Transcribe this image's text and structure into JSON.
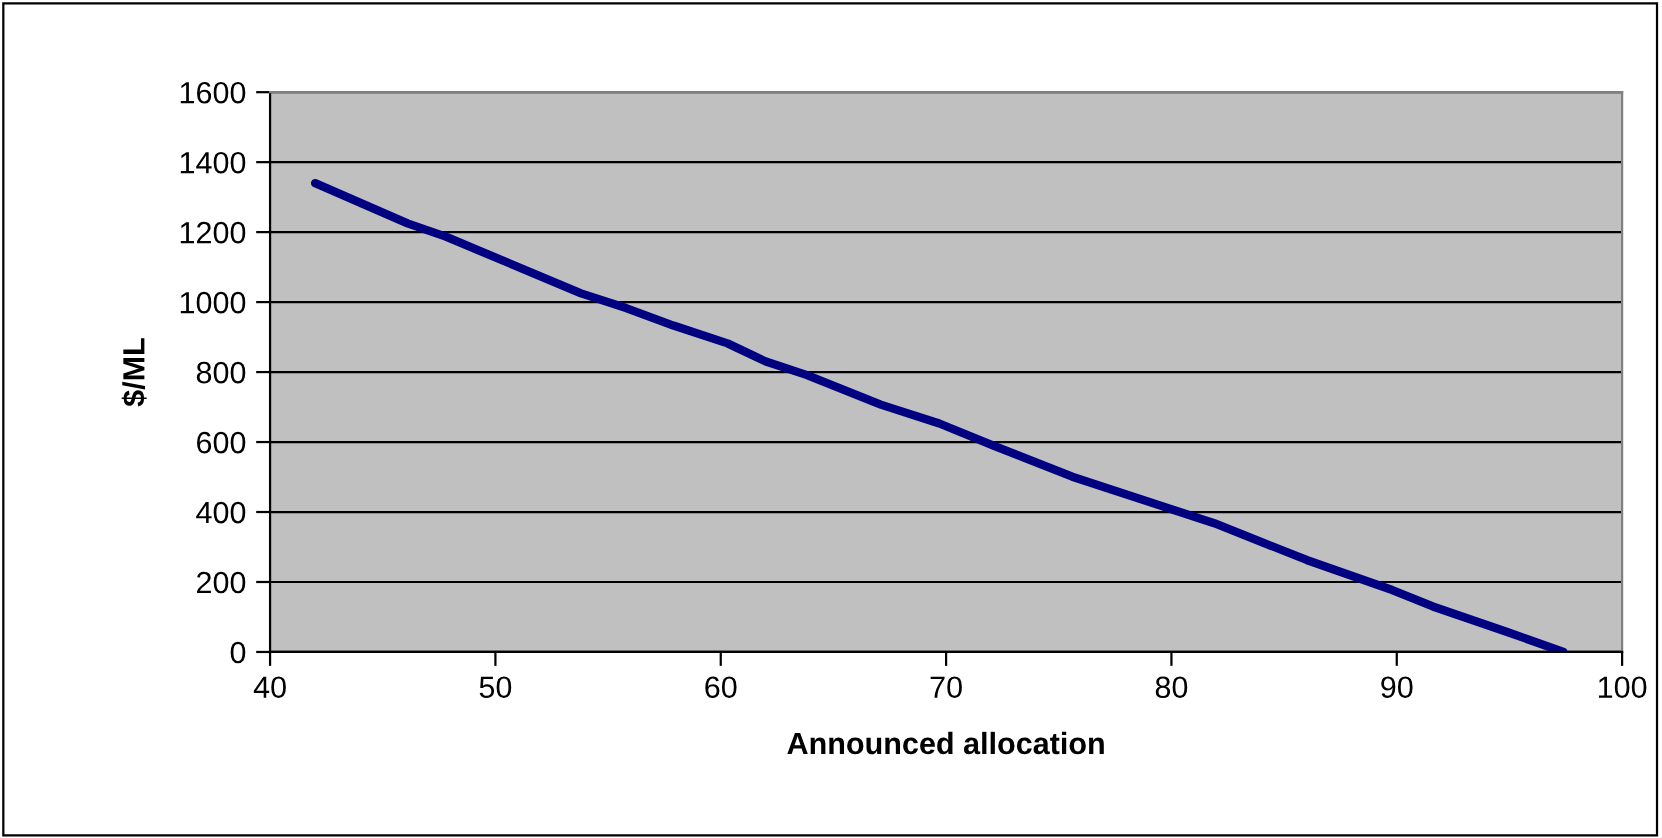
{
  "chart_data": {
    "type": "line",
    "xlabel": "Announced allocation",
    "ylabel": "$/ML",
    "xlim": [
      40,
      100
    ],
    "xticks": [
      40,
      50,
      60,
      70,
      80,
      90,
      100
    ],
    "ylim": [
      0,
      1600
    ],
    "yticks": [
      0,
      200,
      400,
      600,
      800,
      1000,
      1200,
      1400,
      1600
    ],
    "grid": "y",
    "marker": "none",
    "line_style": "solid",
    "series": [
      {
        "color": "#000080",
        "x": [
          42.0,
          46.1,
          47.8,
          53.8,
          55.8,
          57.9,
          60.3,
          62.0,
          63.8,
          67.1,
          69.7,
          72.1,
          75.6,
          80.1,
          81.9,
          86.0,
          89.8,
          91.6,
          94.9,
          97.4
        ],
        "values": [
          1340,
          1225,
          1187,
          1025,
          983,
          933,
          882,
          830,
          792,
          707,
          653,
          590,
          501,
          406,
          368,
          263,
          177,
          130,
          57,
          0
        ]
      }
    ]
  }
}
